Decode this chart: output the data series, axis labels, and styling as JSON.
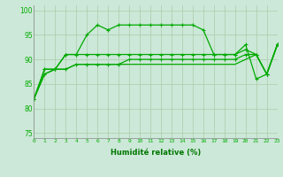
{
  "x": [
    0,
    1,
    2,
    3,
    4,
    5,
    6,
    7,
    8,
    9,
    10,
    11,
    12,
    13,
    14,
    15,
    16,
    17,
    18,
    19,
    20,
    21,
    22,
    23
  ],
  "line1": [
    82,
    88,
    88,
    91,
    91,
    95,
    97,
    96,
    97,
    97,
    97,
    97,
    97,
    97,
    97,
    97,
    96,
    91,
    91,
    91,
    93,
    86,
    87,
    93
  ],
  "line2": [
    82,
    88,
    88,
    91,
    91,
    91,
    91,
    91,
    91,
    91,
    91,
    91,
    91,
    91,
    91,
    91,
    91,
    91,
    91,
    91,
    92,
    91,
    87,
    93
  ],
  "line3": [
    82,
    87,
    88,
    88,
    89,
    89,
    89,
    89,
    89,
    90,
    90,
    90,
    90,
    90,
    90,
    90,
    90,
    90,
    90,
    90,
    91,
    91,
    87,
    93
  ],
  "line4": [
    82,
    87,
    88,
    88,
    89,
    89,
    89,
    89,
    89,
    89,
    89,
    89,
    89,
    89,
    89,
    89,
    89,
    89,
    89,
    89,
    90,
    91,
    87,
    93
  ],
  "bg_color": "#cce8d8",
  "line_color": "#00aa00",
  "grid_color": "#aaccaa",
  "label_color": "#007700",
  "xlabel": "Humidité relative (%)",
  "ylim": [
    74,
    101
  ],
  "yticks": [
    75,
    80,
    85,
    90,
    95,
    100
  ],
  "xlim": [
    0,
    23
  ]
}
